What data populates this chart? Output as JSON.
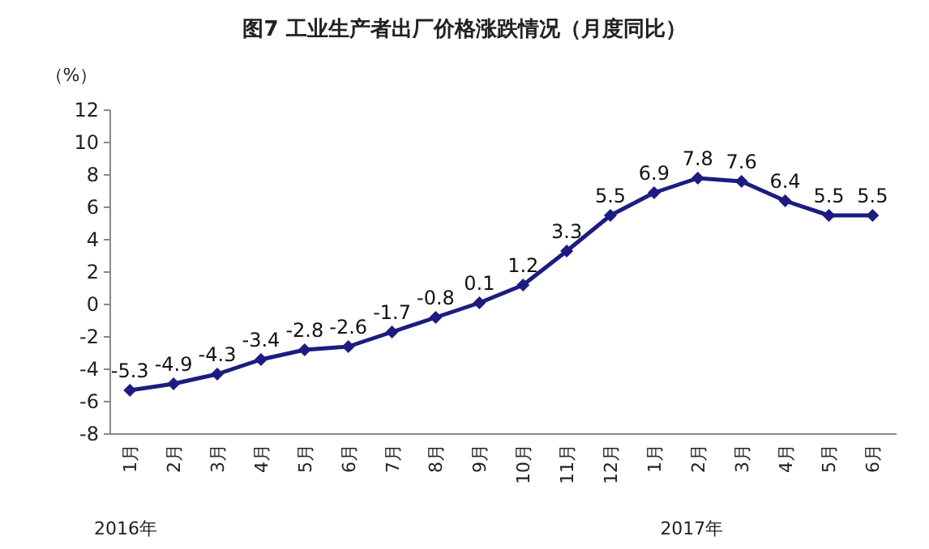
{
  "chart_data": {
    "type": "line",
    "title": "图7  工业生产者出厂价格涨跌情况（月度同比）",
    "ylabel": "（%）",
    "categories": [
      "1月",
      "2月",
      "3月",
      "4月",
      "5月",
      "6月",
      "7月",
      "8月",
      "9月",
      "10月",
      "11月",
      "12月",
      "1月",
      "2月",
      "3月",
      "4月",
      "5月",
      "6月"
    ],
    "series": [
      {
        "color": "#1c1c80",
        "values": [
          -5.3,
          -4.9,
          -4.3,
          -3.4,
          -2.8,
          -2.6,
          -1.7,
          -0.8,
          0.1,
          1.2,
          3.3,
          5.5,
          6.9,
          7.8,
          7.6,
          6.4,
          5.5,
          5.5
        ]
      }
    ],
    "ylim": [
      -8,
      12
    ],
    "yticks": [
      -8,
      -6,
      -4,
      -2,
      0,
      2,
      4,
      6,
      8,
      10,
      12
    ],
    "marker": "diamond",
    "line_style": "solid",
    "data_labels": true,
    "annotations": [
      "2016年",
      "2017年"
    ]
  }
}
